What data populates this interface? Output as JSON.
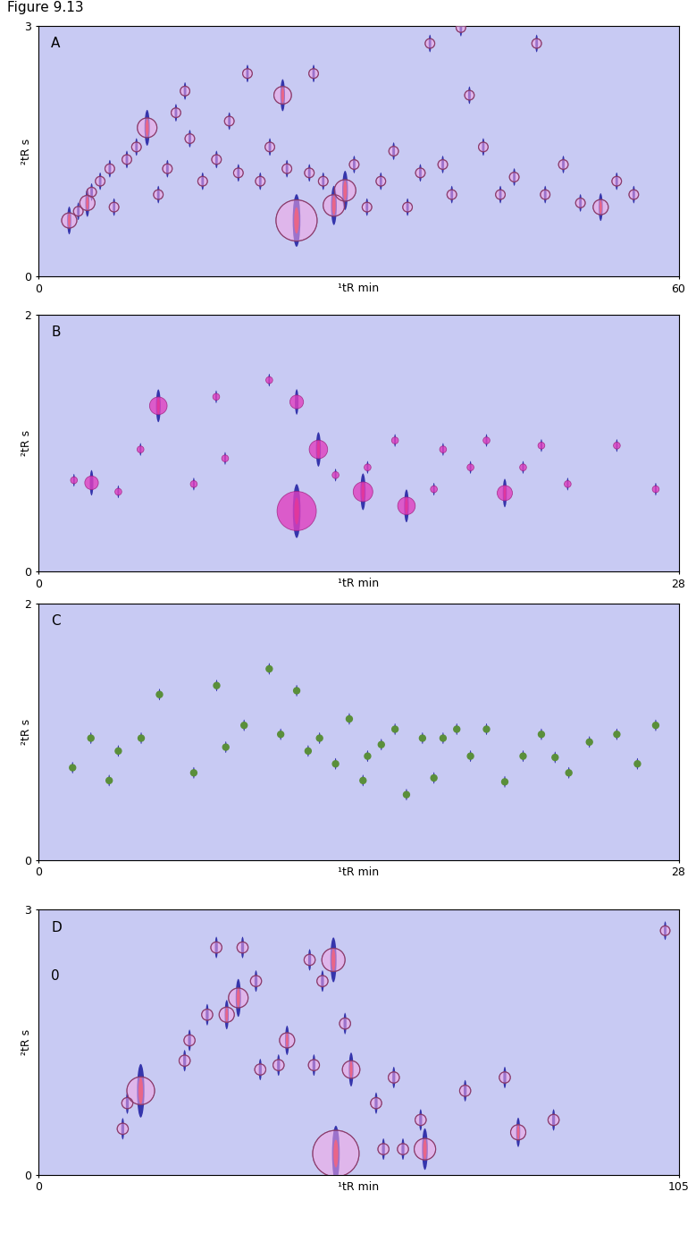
{
  "title": "Figure 9.13",
  "chart_data": [
    {
      "type": "scatter",
      "annotations": [
        {
          "text": "A"
        }
      ],
      "x_label": "¹tR min",
      "y_label": "²tR s",
      "xlim": [
        0,
        60
      ],
      "ylim": [
        0,
        3
      ],
      "xticks": [
        0,
        60
      ],
      "yticks": [
        0,
        3
      ],
      "marker": "circle",
      "color": "#8a3a6a",
      "x": [
        2.9,
        3.75,
        4.6,
        5.0,
        5.8,
        6.7,
        7.1,
        8.3,
        9.2,
        10.2,
        11.25,
        12.1,
        12.9,
        13.75,
        14.2,
        15.4,
        16.7,
        17.9,
        18.75,
        19.6,
        20.8,
        21.7,
        22.9,
        23.3,
        24.2,
        25.4,
        25.8,
        26.7,
        27.7,
        28.75,
        29.6,
        30.8,
        32.1,
        33.3,
        34.6,
        35.8,
        36.7,
        37.9,
        38.75,
        39.6,
        40.4,
        41.7,
        43.3,
        44.6,
        46.7,
        47.5,
        49.2,
        50.8,
        52.7,
        54.2,
        55.8
      ],
      "y": [
        0.67,
        0.78,
        0.88,
        1.01,
        1.14,
        1.29,
        0.83,
        1.4,
        1.55,
        1.78,
        0.98,
        1.29,
        1.96,
        2.22,
        1.65,
        1.14,
        1.4,
        1.86,
        1.24,
        2.43,
        1.14,
        1.55,
        2.17,
        1.29,
        0.67,
        1.24,
        2.43,
        1.14,
        0.85,
        1.03,
        1.34,
        0.83,
        1.14,
        1.5,
        0.83,
        1.24,
        2.79,
        1.34,
        0.98,
        2.98,
        2.17,
        1.55,
        0.98,
        1.19,
        2.79,
        0.98,
        1.34,
        0.88,
        0.83,
        1.14,
        0.98
      ],
      "size": [
        150,
        60,
        150,
        60,
        60,
        60,
        60,
        60,
        60,
        250,
        60,
        60,
        60,
        60,
        60,
        60,
        60,
        60,
        60,
        60,
        60,
        60,
        200,
        60,
        1100,
        60,
        60,
        60,
        300,
        300,
        60,
        60,
        60,
        60,
        60,
        60,
        60,
        60,
        60,
        60,
        60,
        60,
        60,
        60,
        60,
        60,
        60,
        60,
        150,
        60,
        60
      ]
    },
    {
      "type": "scatter",
      "annotations": [
        {
          "text": "B"
        }
      ],
      "x_label": "¹tR min",
      "y_label": "²tR s",
      "xlim": [
        0,
        28
      ],
      "ylim": [
        0,
        2
      ],
      "xticks": [
        0,
        28
      ],
      "yticks": [
        0,
        2
      ],
      "marker": "filled_circle",
      "color": "#e040c0",
      "x": [
        1.56,
        2.33,
        3.5,
        4.47,
        5.25,
        6.8,
        7.78,
        8.17,
        10.1,
        11.3,
        11.3,
        12.25,
        13.0,
        14.2,
        14.4,
        15.6,
        16.1,
        17.3,
        17.7,
        18.9,
        19.6,
        20.4,
        21.2,
        22.0,
        23.15,
        25.3,
        27.0
      ],
      "y": [
        0.71,
        0.69,
        0.62,
        0.95,
        1.29,
        0.68,
        1.36,
        0.88,
        1.49,
        0.47,
        1.32,
        0.95,
        0.75,
        0.62,
        0.81,
        1.02,
        0.51,
        0.64,
        0.95,
        0.81,
        1.02,
        0.61,
        0.81,
        0.98,
        0.68,
        0.98,
        0.64
      ],
      "size": [
        30,
        120,
        30,
        30,
        200,
        30,
        30,
        30,
        30,
        1000,
        120,
        220,
        30,
        250,
        30,
        30,
        200,
        30,
        30,
        30,
        30,
        150,
        30,
        30,
        30,
        30,
        30
      ]
    },
    {
      "type": "scatter",
      "annotations": [
        {
          "text": "C"
        }
      ],
      "x_label": "¹tR min",
      "y_label": "²tR s",
      "xlim": [
        0,
        28
      ],
      "ylim": [
        0,
        2
      ],
      "xticks": [
        0,
        28
      ],
      "yticks": [
        0,
        2
      ],
      "marker": "dot",
      "color": "#5a8f3a",
      "x": [
        1.5,
        2.3,
        3.1,
        3.5,
        4.5,
        5.3,
        6.8,
        7.8,
        8.2,
        9.0,
        10.1,
        10.6,
        11.3,
        11.8,
        12.3,
        13.0,
        13.6,
        14.2,
        14.4,
        15.0,
        15.6,
        16.1,
        16.8,
        17.3,
        17.7,
        18.3,
        18.9,
        19.6,
        20.4,
        21.2,
        22.0,
        22.6,
        23.2,
        24.1,
        25.3,
        26.2,
        27.0
      ],
      "y": [
        0.72,
        0.95,
        0.62,
        0.85,
        0.95,
        1.29,
        0.68,
        1.36,
        0.88,
        1.05,
        1.49,
        0.98,
        1.32,
        0.85,
        0.95,
        0.75,
        1.1,
        0.62,
        0.81,
        0.9,
        1.02,
        0.51,
        0.95,
        0.64,
        0.95,
        1.02,
        0.81,
        1.02,
        0.61,
        0.81,
        0.98,
        0.8,
        0.68,
        0.92,
        0.98,
        0.75,
        1.05
      ],
      "size": [
        25,
        25,
        25,
        25,
        25,
        25,
        25,
        25,
        25,
        25,
        25,
        25,
        25,
        25,
        25,
        25,
        25,
        25,
        25,
        25,
        25,
        25,
        25,
        25,
        25,
        25,
        25,
        25,
        25,
        25,
        25,
        25,
        25,
        25,
        25,
        25,
        25
      ]
    },
    {
      "type": "scatter",
      "annotations": [
        {
          "text": "D"
        },
        {
          "text": "0"
        }
      ],
      "x_label": "¹tR min",
      "y_label": "²tR s",
      "xlim": [
        0,
        105
      ],
      "ylim": [
        0,
        3
      ],
      "xticks": [
        0,
        105
      ],
      "yticks": [
        0,
        3
      ],
      "marker": "circle",
      "color": "#8a3a6a",
      "x": [
        13.85,
        14.6,
        16.8,
        24.0,
        24.8,
        27.7,
        29.2,
        30.9,
        32.8,
        33.5,
        35.7,
        36.4,
        39.4,
        40.8,
        44.5,
        45.2,
        46.6,
        48.4,
        48.8,
        50.3,
        51.3,
        55.4,
        56.6,
        58.3,
        59.8,
        62.7,
        63.4,
        70.0,
        76.5,
        78.7,
        84.5,
        102.8
      ],
      "y": [
        0.52,
        0.81,
        0.95,
        1.29,
        1.52,
        1.81,
        2.57,
        1.81,
        2.0,
        2.57,
        2.19,
        1.19,
        1.24,
        1.52,
        2.43,
        1.24,
        2.19,
        2.43,
        0.24,
        1.71,
        1.19,
        0.81,
        0.29,
        1.1,
        0.29,
        0.62,
        0.29,
        0.95,
        1.1,
        0.48,
        0.62,
        2.76
      ],
      "size": [
        80,
        80,
        500,
        80,
        80,
        80,
        80,
        150,
        250,
        80,
        80,
        80,
        80,
        150,
        80,
        80,
        80,
        350,
        1400,
        80,
        200,
        80,
        80,
        80,
        80,
        80,
        300,
        80,
        80,
        150,
        80,
        60
      ]
    }
  ]
}
